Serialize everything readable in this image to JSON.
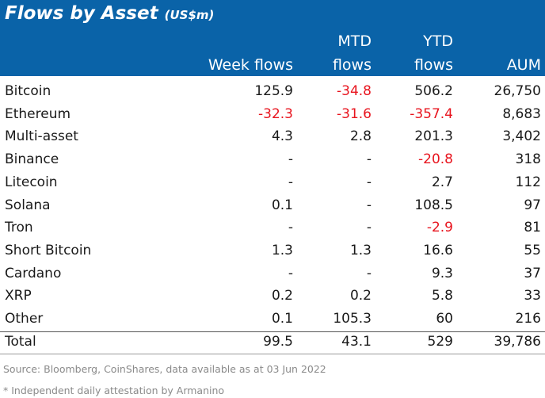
{
  "chart_data": {
    "type": "table",
    "title": "Flows by Asset",
    "title_unit": "(US$m)",
    "columns": [
      {
        "key": "week",
        "lines": [
          "",
          "Week flows"
        ]
      },
      {
        "key": "mtd",
        "lines": [
          "MTD",
          "flows"
        ]
      },
      {
        "key": "ytd",
        "lines": [
          "YTD",
          "flows"
        ]
      },
      {
        "key": "aum",
        "lines": [
          "",
          "AUM"
        ]
      }
    ],
    "rows": [
      {
        "name": "Bitcoin",
        "week": "125.9",
        "mtd": "-34.8",
        "ytd": "506.2",
        "aum": "26,750"
      },
      {
        "name": "Ethereum",
        "week": "-32.3",
        "mtd": "-31.6",
        "ytd": "-357.4",
        "aum": "8,683"
      },
      {
        "name": "Multi-asset",
        "week": "4.3",
        "mtd": "2.8",
        "ytd": "201.3",
        "aum": "3,402"
      },
      {
        "name": "Binance",
        "week": "-",
        "mtd": "-",
        "ytd": "-20.8",
        "aum": "318"
      },
      {
        "name": "Litecoin",
        "week": "-",
        "mtd": "-",
        "ytd": "2.7",
        "aum": "112"
      },
      {
        "name": "Solana",
        "week": "0.1",
        "mtd": "-",
        "ytd": "108.5",
        "aum": "97"
      },
      {
        "name": "Tron",
        "week": "-",
        "mtd": "-",
        "ytd": "-2.9",
        "aum": "81"
      },
      {
        "name": "Short Bitcoin",
        "week": "1.3",
        "mtd": "1.3",
        "ytd": "16.6",
        "aum": "55"
      },
      {
        "name": "Cardano",
        "week": "-",
        "mtd": "-",
        "ytd": "9.3",
        "aum": "37"
      },
      {
        "name": "XRP",
        "week": "0.2",
        "mtd": "0.2",
        "ytd": "5.8",
        "aum": "33"
      },
      {
        "name": "Other",
        "week": "0.1",
        "mtd": "105.3",
        "ytd": "60",
        "aum": "216"
      }
    ],
    "total": {
      "name": "Total",
      "week": "99.5",
      "mtd": "43.1",
      "ytd": "529",
      "aum": "39,786"
    },
    "colors": {
      "header_bg": "#0a63a8",
      "negative": "#e8141e"
    }
  },
  "footnotes": {
    "source": "Source: Bloomberg, CoinShares, data available as at 03 Jun 2022",
    "note": "* Independent daily attestation by Armanino"
  }
}
